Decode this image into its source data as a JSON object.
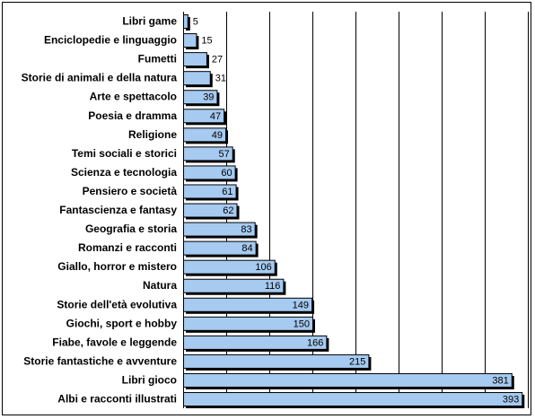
{
  "chart_data": {
    "type": "bar",
    "orientation": "horizontal",
    "title": "",
    "xlabel": "",
    "ylabel": "",
    "xlim": [
      0,
      400
    ],
    "grid": "vertical",
    "legend": "none",
    "categories": [
      "Libri game",
      "Enciclopedie e linguaggio",
      "Fumetti",
      "Storie di animali e della natura",
      "Arte e spettacolo",
      "Poesia e dramma",
      "Religione",
      "Temi sociali e storici",
      "Scienza e tecnologia",
      "Pensiero e società",
      "Fantascienza e fantasy",
      "Geografia e storia",
      "Romanzi e racconti",
      "Giallo, horror e mistero",
      "Natura",
      "Storie dell'età evolutiva",
      "Giochi, sport e hobby",
      "Fiabe, favole e leggende",
      "Storie fantastiche e avventure",
      "Libri gioco",
      "Albi e racconti illustrati"
    ],
    "values": [
      5,
      15,
      27,
      31,
      39,
      47,
      49,
      57,
      60,
      61,
      62,
      83,
      84,
      106,
      116,
      149,
      150,
      166,
      215,
      381,
      393
    ],
    "colors": {
      "bar_fill": "#a6caf0",
      "bar_border": "#000000",
      "bar_shadow": "#000000",
      "gridline": "#000000"
    }
  }
}
